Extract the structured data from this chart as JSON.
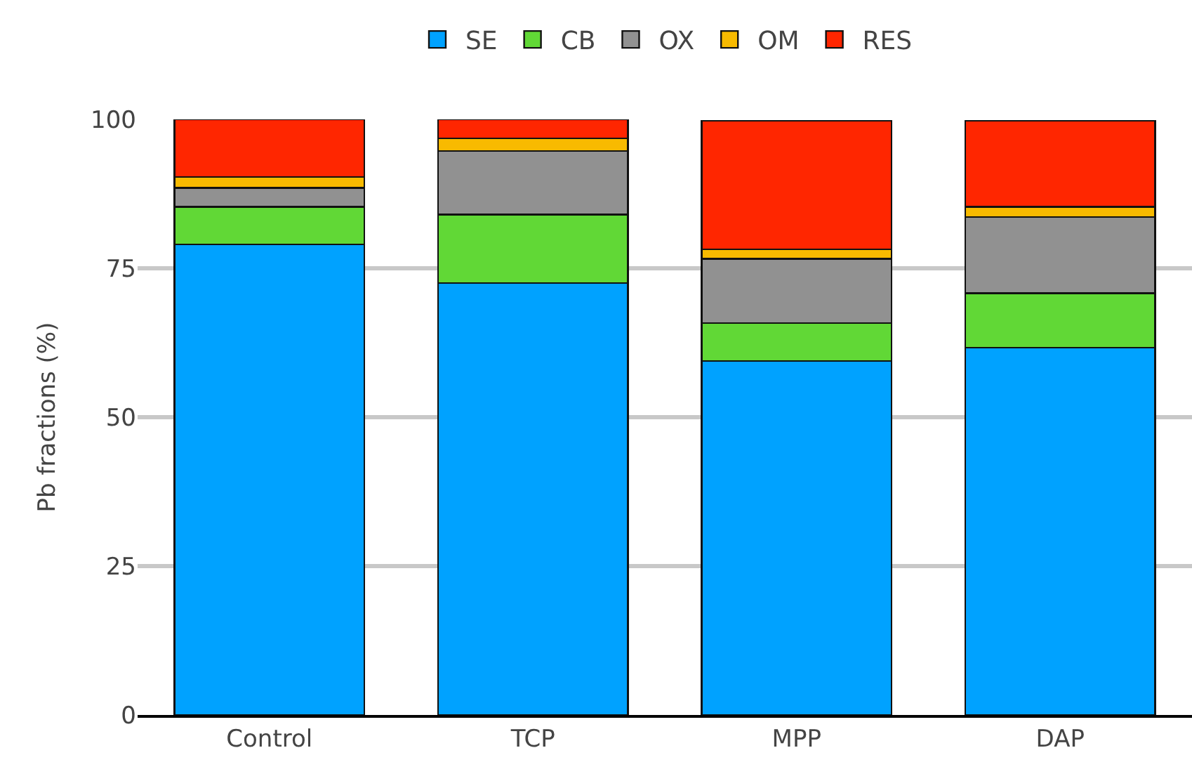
{
  "chart_data": {
    "type": "bar",
    "stacked": true,
    "ylabel": "Pb fractions (%)",
    "categories": [
      "Control",
      "TCP",
      "MPP",
      "DAP"
    ],
    "series": [
      {
        "name": "SE",
        "color": "#00a2ff",
        "values": [
          79.0,
          72.5,
          59.4,
          61.7
        ]
      },
      {
        "name": "CB",
        "color": "#61d836",
        "values": [
          6.3,
          11.5,
          6.4,
          9.1
        ]
      },
      {
        "name": "OX",
        "color": "#919191",
        "values": [
          3.2,
          10.7,
          10.8,
          12.8
        ]
      },
      {
        "name": "OM",
        "color": "#f8ba00",
        "values": [
          1.8,
          2.1,
          1.6,
          1.7
        ]
      },
      {
        "name": "RES",
        "color": "#ff2600",
        "values": [
          9.7,
          3.2,
          21.6,
          14.5
        ]
      }
    ],
    "ylim": [
      0,
      100
    ],
    "yticks": [
      0,
      25,
      50,
      75,
      100
    ],
    "grid": "y",
    "legend": "top"
  }
}
